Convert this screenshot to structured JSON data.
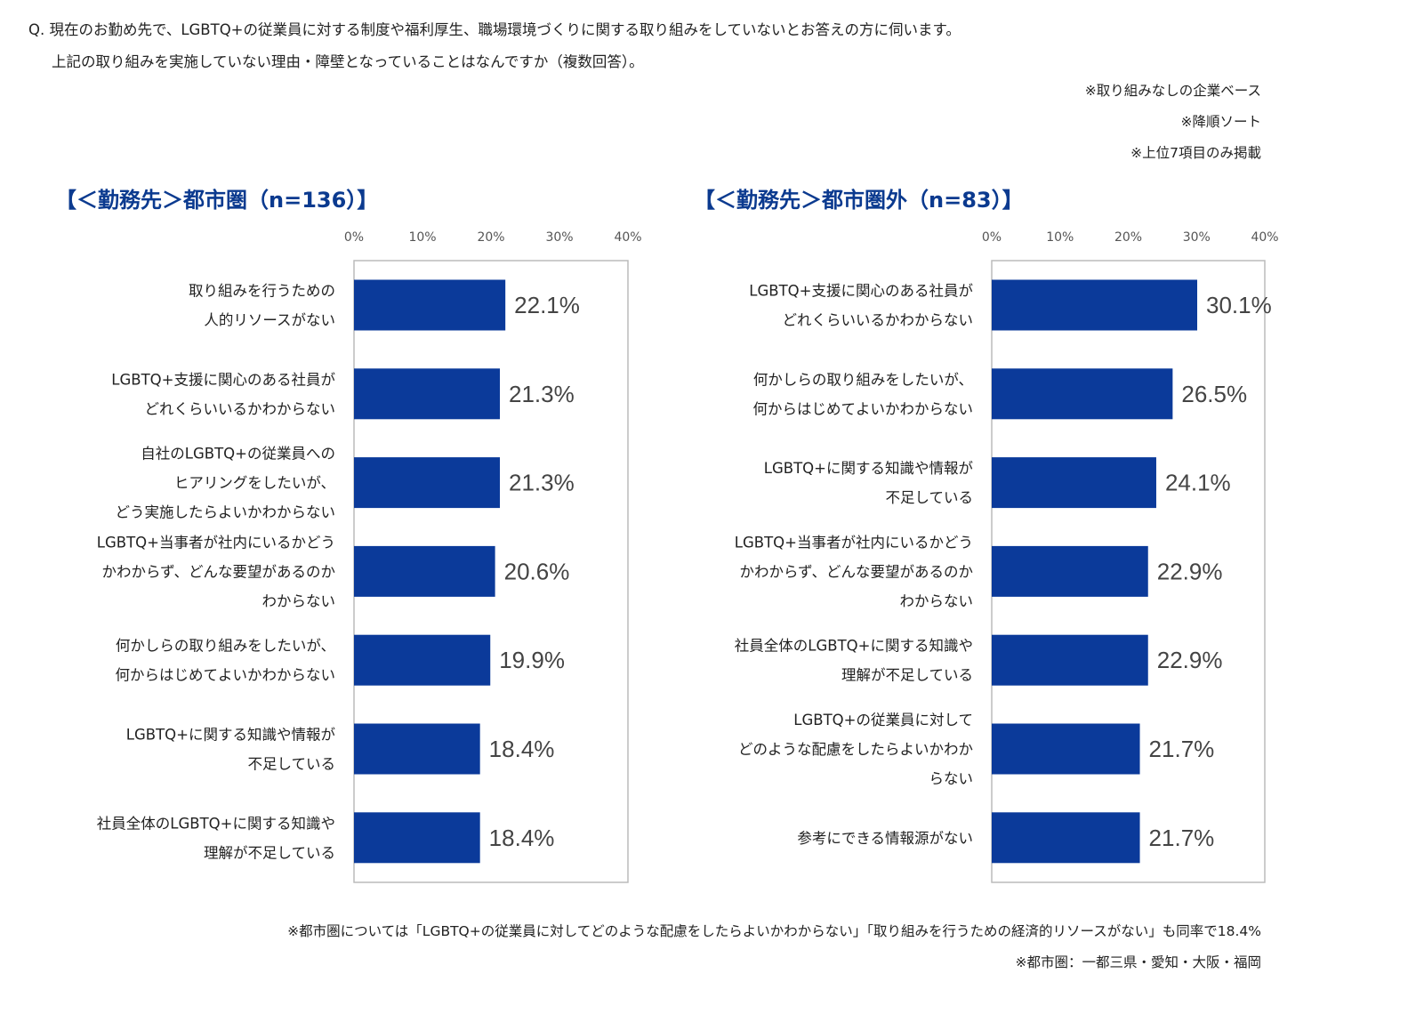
{
  "question": {
    "line1": "Q. 現在のお勤め先で、LGBTQ+の従業員に対する制度や福利厚生、職場環境づくりに関する取り組みをしていないとお答えの方に伺います。",
    "line2": "上記の取り組みを実施していない理由・障壁となっていることはなんですか（複数回答）。"
  },
  "notes": {
    "base": "※取り組みなしの企業ベース",
    "sort": "※降順ソート",
    "top7": "※上位7項目のみ掲載"
  },
  "footnotes": {
    "tie": "※都市圏については「LGBTQ+の従業員に対してどのような配慮をしたらよいかわからない」「取り組みを行うための経済的リソースがない」も同率で18.4%",
    "region": "※都市圏：一都三県・愛知・大阪・福岡"
  },
  "colors": {
    "bar": "#0b3a9a",
    "title": "#0b3a8f",
    "frame": "#bbbbbb"
  },
  "chart_data": [
    {
      "type": "bar",
      "orientation": "horizontal",
      "title": "【＜勤務先＞都市圏（n=136）】",
      "xlim": [
        0,
        40
      ],
      "ticks": [
        "0%",
        "10%",
        "20%",
        "30%",
        "40%"
      ],
      "categories": [
        [
          "取り組みを行うための",
          "人的リソースがない"
        ],
        [
          "LGBTQ+支援に関心のある社員が",
          "どれくらいいるかわからない"
        ],
        [
          "自社のLGBTQ+の従業員への",
          "ヒアリングをしたいが、",
          "どう実施したらよいかわからない"
        ],
        [
          "LGBTQ+当事者が社内にいるかどう",
          "かわからず、どんな要望があるのか",
          "わからない"
        ],
        [
          "何かしらの取り組みをしたいが、",
          "何からはじめてよいかわからない"
        ],
        [
          "LGBTQ+に関する知識や情報が",
          "不足している"
        ],
        [
          "社員全体のLGBTQ+に関する知識や",
          "理解が不足している"
        ]
      ],
      "values": [
        22.1,
        21.3,
        21.3,
        20.6,
        19.9,
        18.4,
        18.4
      ],
      "labels": [
        "22.1%",
        "21.3%",
        "21.3%",
        "20.6%",
        "19.9%",
        "18.4%",
        "18.4%"
      ]
    },
    {
      "type": "bar",
      "orientation": "horizontal",
      "title": "【＜勤務先＞都市圏外（n=83）】",
      "xlim": [
        0,
        40
      ],
      "ticks": [
        "0%",
        "10%",
        "20%",
        "30%",
        "40%"
      ],
      "categories": [
        [
          "LGBTQ+支援に関心のある社員が",
          "どれくらいいるかわからない"
        ],
        [
          "何かしらの取り組みをしたいが、",
          "何からはじめてよいかわからない"
        ],
        [
          "LGBTQ+に関する知識や情報が",
          "不足している"
        ],
        [
          "LGBTQ+当事者が社内にいるかどう",
          "かわからず、どんな要望があるのか",
          "わからない"
        ],
        [
          "社員全体のLGBTQ+に関する知識や",
          "理解が不足している"
        ],
        [
          "LGBTQ+の従業員に対して",
          "どのような配慮をしたらよいかわか",
          "らない"
        ],
        [
          "参考にできる情報源がない"
        ]
      ],
      "values": [
        30.1,
        26.5,
        24.1,
        22.9,
        22.9,
        21.7,
        21.7
      ],
      "labels": [
        "30.1%",
        "26.5%",
        "24.1%",
        "22.9%",
        "22.9%",
        "21.7%",
        "21.7%"
      ]
    }
  ]
}
